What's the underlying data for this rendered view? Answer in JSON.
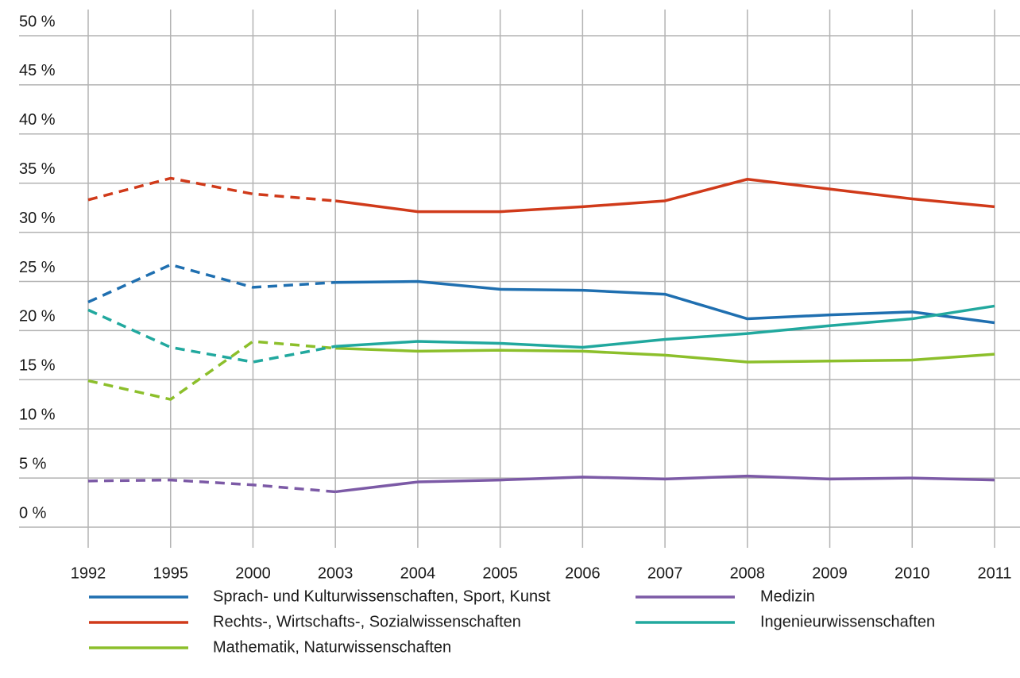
{
  "chart_data": {
    "type": "line",
    "categories": [
      "1992",
      "1995",
      "2000",
      "2003",
      "2004",
      "2005",
      "2006",
      "2007",
      "2008",
      "2009",
      "2010",
      "2011"
    ],
    "ylim": [
      0,
      50
    ],
    "yticks": [
      {
        "value": 0,
        "label": "0 %"
      },
      {
        "value": 5,
        "label": "5 %"
      },
      {
        "value": 10,
        "label": "10 %"
      },
      {
        "value": 15,
        "label": "15 %"
      },
      {
        "value": 20,
        "label": "20 %"
      },
      {
        "value": 25,
        "label": "25 %"
      },
      {
        "value": 30,
        "label": "30 %"
      },
      {
        "value": 35,
        "label": "35 %"
      },
      {
        "value": 40,
        "label": "40 %"
      },
      {
        "value": 45,
        "label": "45 %"
      },
      {
        "value": 50,
        "label": "50 %"
      }
    ],
    "grid": true,
    "dashed_until": "2003",
    "series": [
      {
        "name": "Sprach- und Kulturwissenschaften, Sport, Kunst",
        "color": "#1f6fb0",
        "values": [
          22.9,
          26.7,
          24.4,
          24.9,
          25.0,
          24.2,
          24.1,
          23.7,
          21.2,
          21.6,
          21.9,
          20.8
        ]
      },
      {
        "name": "Rechts-, Wirtschafts-, Sozialwissenschaften",
        "color": "#d03a1a",
        "values": [
          33.3,
          35.5,
          33.9,
          33.2,
          32.1,
          32.1,
          32.6,
          33.2,
          35.4,
          34.4,
          33.4,
          32.6
        ]
      },
      {
        "name": "Mathematik, Naturwissenschaften",
        "color": "#8cbf2b",
        "values": [
          14.9,
          13.0,
          18.9,
          18.2,
          17.9,
          18.0,
          17.9,
          17.5,
          16.8,
          16.9,
          17.0,
          17.6
        ]
      },
      {
        "name": "Medizin",
        "color": "#7c5aa6",
        "values": [
          4.7,
          4.8,
          4.3,
          3.6,
          4.6,
          4.8,
          5.1,
          4.9,
          5.2,
          4.9,
          5.0,
          4.8
        ]
      },
      {
        "name": "Ingenieurwissenschaften",
        "color": "#21a89e",
        "values": [
          22.1,
          18.3,
          16.8,
          18.4,
          18.9,
          18.7,
          18.3,
          19.1,
          19.7,
          20.5,
          21.2,
          22.5
        ]
      }
    ]
  }
}
